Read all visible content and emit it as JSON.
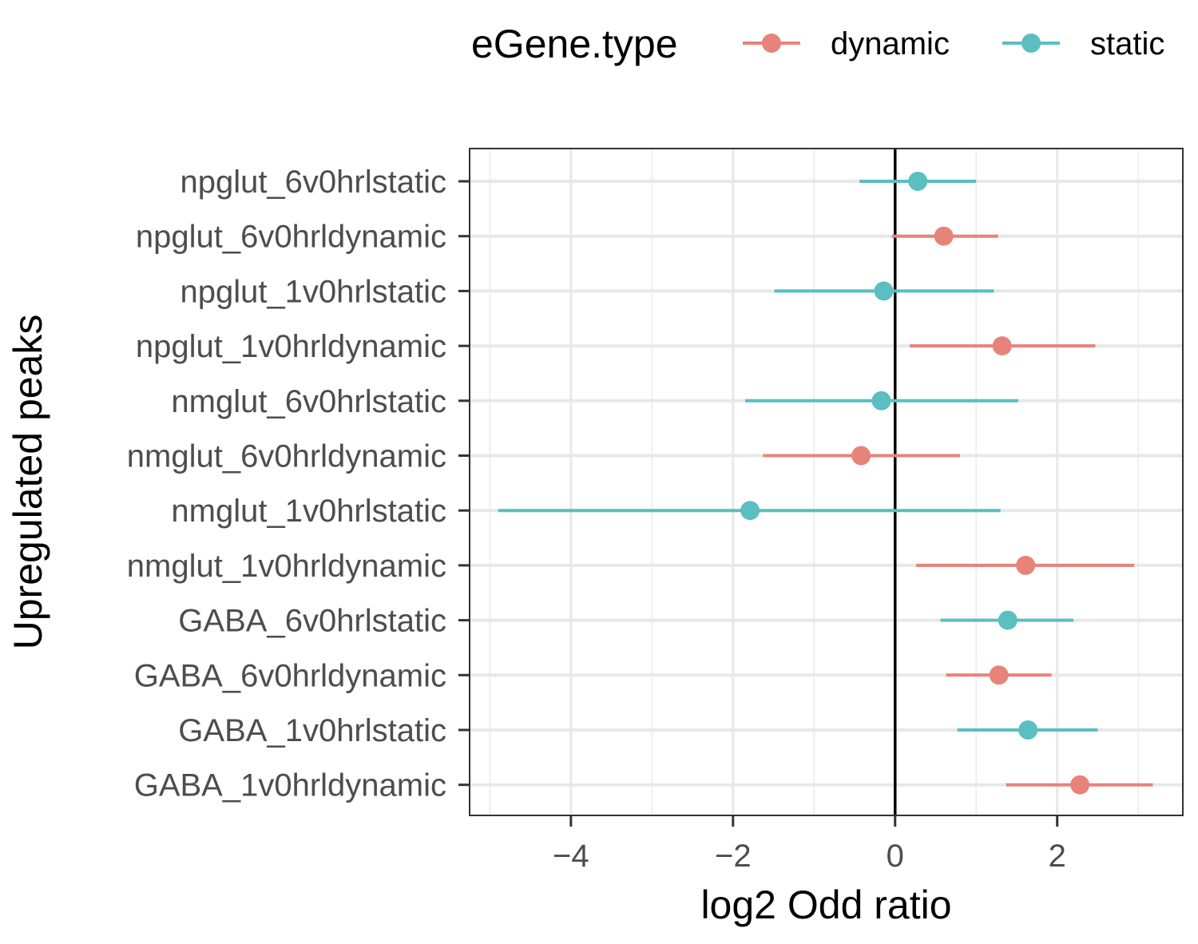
{
  "chart_data": {
    "type": "scatter",
    "subtype": "dot-and-whisker",
    "xlabel": "log2 Odd ratio",
    "ylabel": "Upregulated peaks",
    "xlim": [
      -5.25,
      3.55
    ],
    "x_ticks": [
      -4,
      -2,
      0,
      2
    ],
    "x_tick_labels": [
      "−4",
      "−2",
      "0",
      "2"
    ],
    "reference_line_x": 0,
    "grid": true,
    "legend": {
      "title": "eGene.type",
      "position": "top",
      "items": [
        {
          "name": "dynamic",
          "color": "#E8837A"
        },
        {
          "name": "static",
          "color": "#5BBEC1"
        }
      ]
    },
    "categories": [
      "npglut_6v0hrlstatic",
      "npglut_6v0hrldynamic",
      "npglut_1v0hrlstatic",
      "npglut_1v0hrldynamic",
      "nmglut_6v0hrlstatic",
      "nmglut_6v0hrldynamic",
      "nmglut_1v0hrlstatic",
      "nmglut_1v0hrldynamic",
      "GABA_6v0hrlstatic",
      "GABA_6v0hrldynamic",
      "GABA_1v0hrlstatic",
      "GABA_1v0hrldynamic"
    ],
    "points": [
      {
        "category": "npglut_6v0hrlstatic",
        "group": "static",
        "estimate": 0.28,
        "low": -0.44,
        "high": 1.0
      },
      {
        "category": "npglut_6v0hrldynamic",
        "group": "dynamic",
        "estimate": 0.6,
        "low": -0.04,
        "high": 1.27
      },
      {
        "category": "npglut_1v0hrlstatic",
        "group": "static",
        "estimate": -0.14,
        "low": -1.49,
        "high": 1.22
      },
      {
        "category": "npglut_1v0hrldynamic",
        "group": "dynamic",
        "estimate": 1.32,
        "low": 0.18,
        "high": 2.47
      },
      {
        "category": "nmglut_6v0hrlstatic",
        "group": "static",
        "estimate": -0.17,
        "low": -1.85,
        "high": 1.52
      },
      {
        "category": "nmglut_6v0hrldynamic",
        "group": "dynamic",
        "estimate": -0.42,
        "low": -1.63,
        "high": 0.8
      },
      {
        "category": "nmglut_1v0hrlstatic",
        "group": "static",
        "estimate": -1.79,
        "low": -4.9,
        "high": 1.3
      },
      {
        "category": "nmglut_1v0hrldynamic",
        "group": "dynamic",
        "estimate": 1.61,
        "low": 0.26,
        "high": 2.95
      },
      {
        "category": "GABA_6v0hrlstatic",
        "group": "static",
        "estimate": 1.39,
        "low": 0.56,
        "high": 2.2
      },
      {
        "category": "GABA_6v0hrldynamic",
        "group": "dynamic",
        "estimate": 1.28,
        "low": 0.63,
        "high": 1.93
      },
      {
        "category": "GABA_1v0hrlstatic",
        "group": "static",
        "estimate": 1.64,
        "low": 0.77,
        "high": 2.5
      },
      {
        "category": "GABA_1v0hrldynamic",
        "group": "dynamic",
        "estimate": 2.28,
        "low": 1.37,
        "high": 3.18
      }
    ]
  }
}
